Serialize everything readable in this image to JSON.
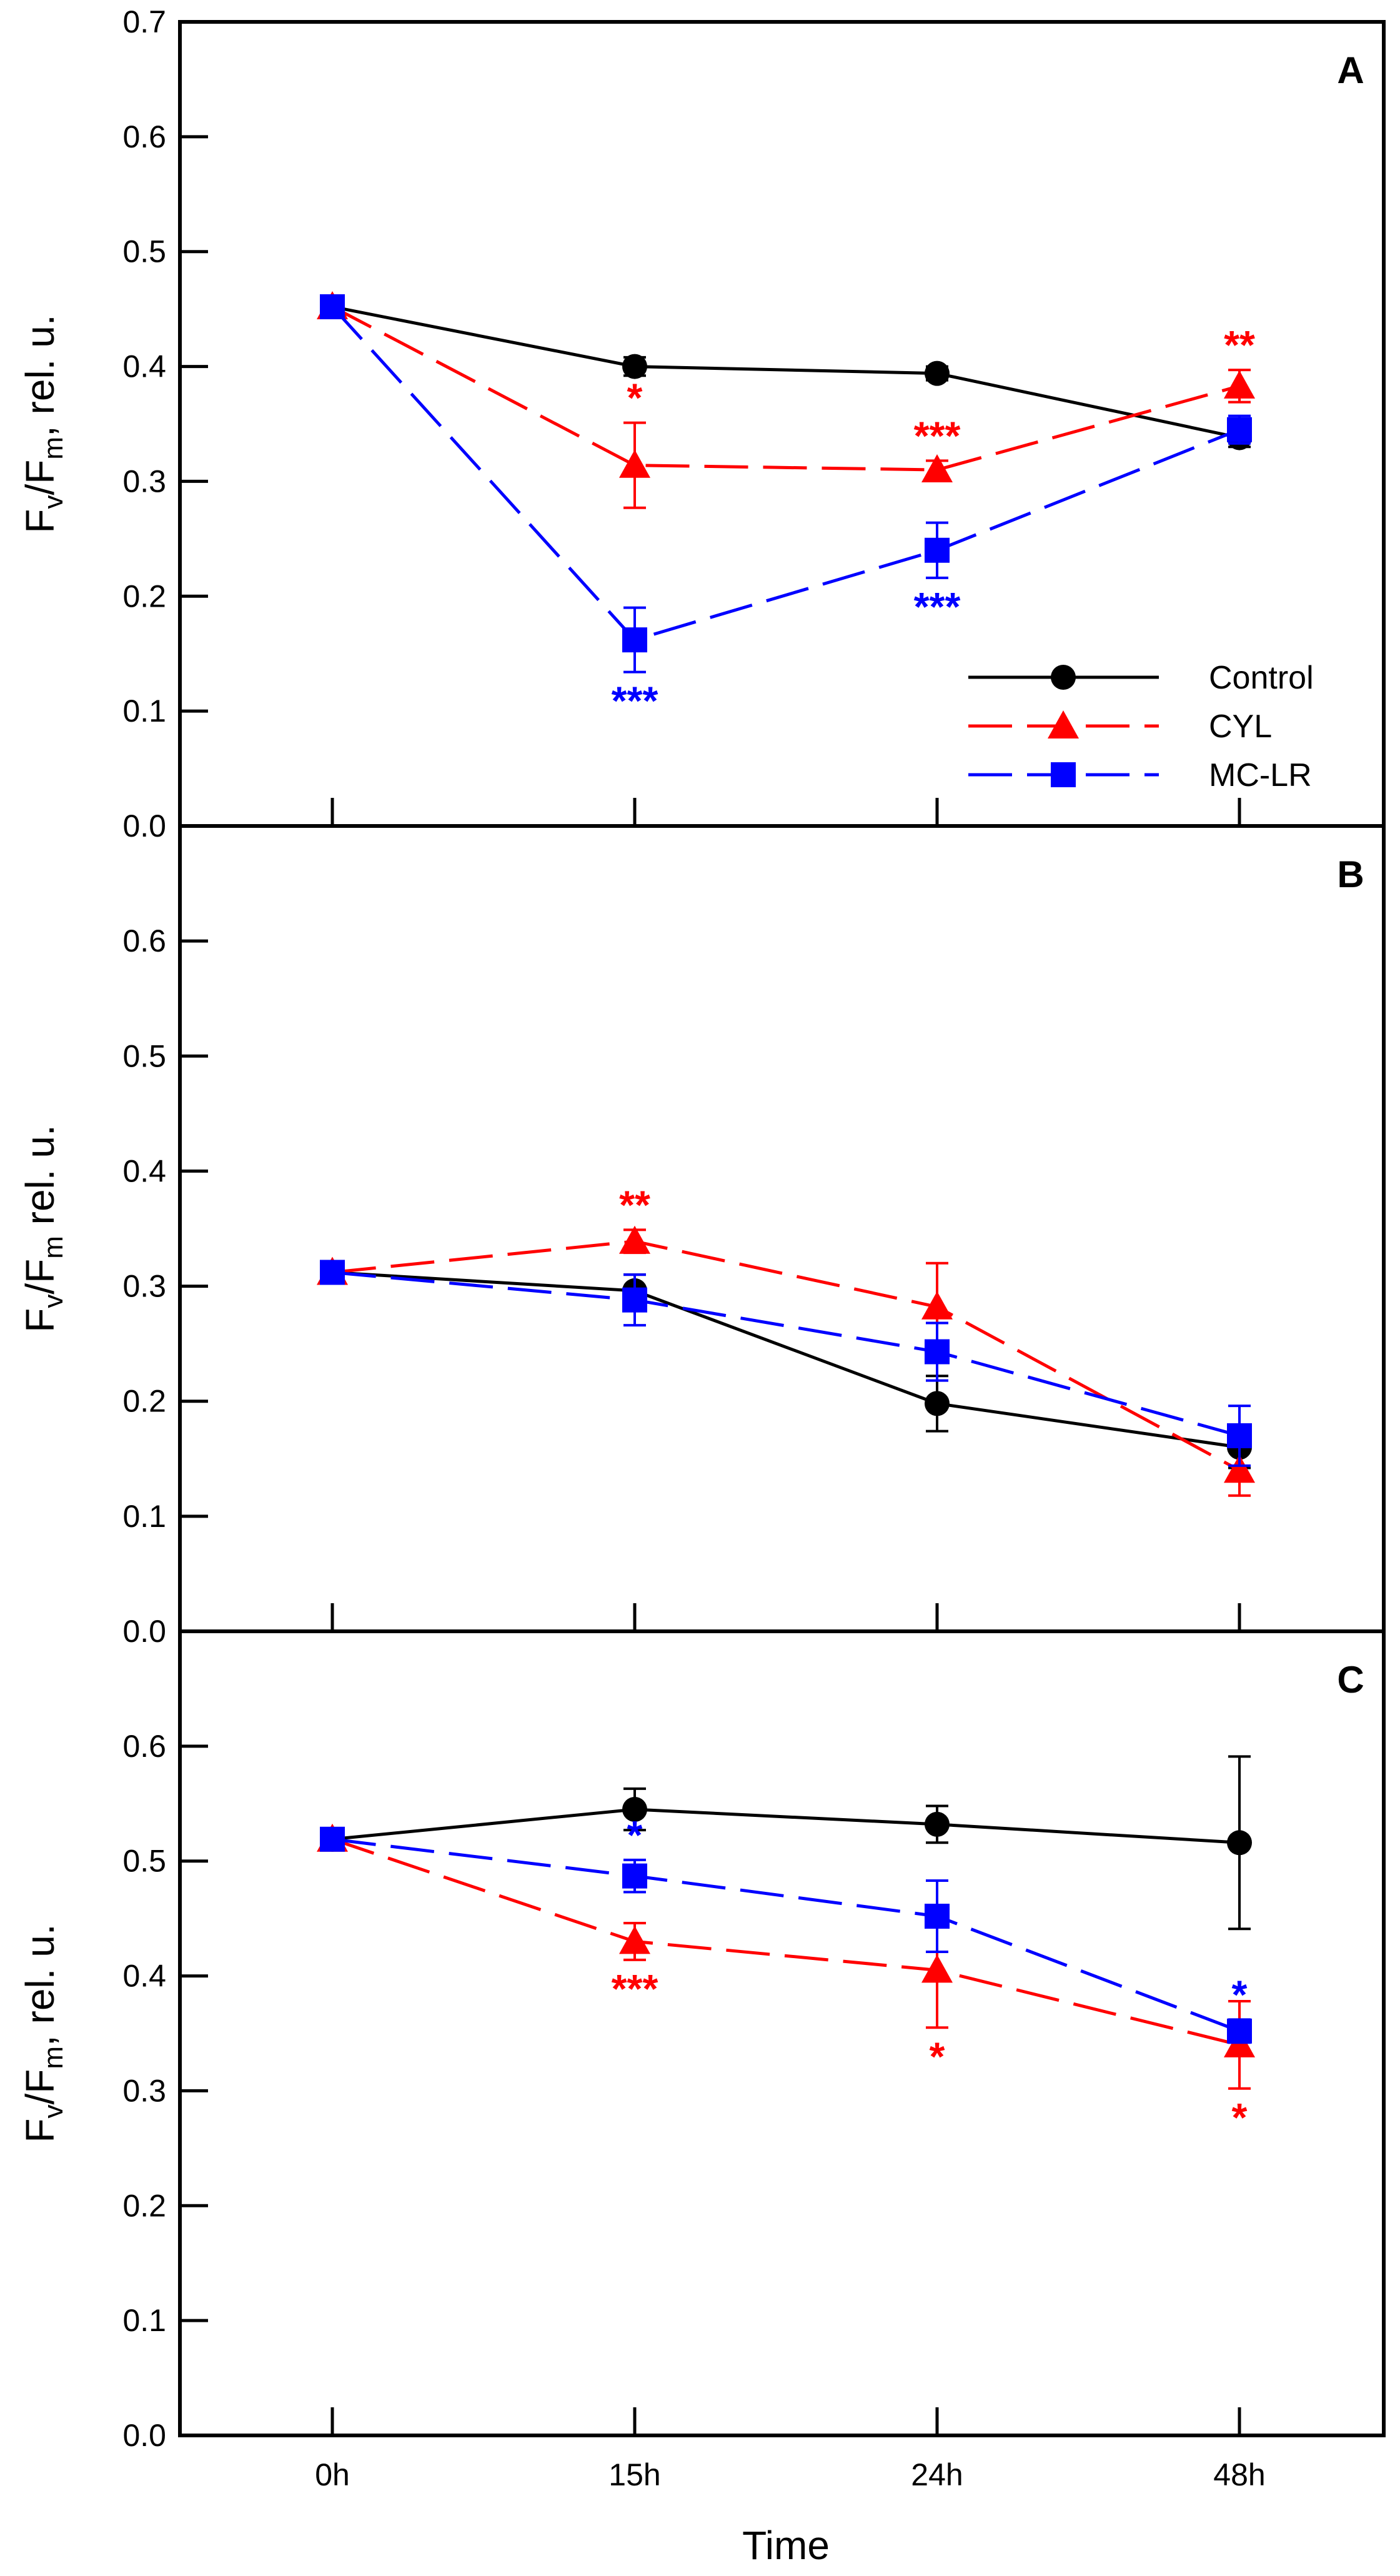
{
  "chart_data": {
    "type": "line",
    "x_categories": [
      "0h",
      "15h",
      "24h",
      "48h"
    ],
    "xlabel": "Time",
    "series_styles": [
      {
        "name": "Control",
        "color": "#000000",
        "marker": "circle",
        "dash": "solid"
      },
      {
        "name": "CYL",
        "color": "#ff0000",
        "marker": "triangle",
        "dash": "dashed"
      },
      {
        "name": "MC-LR",
        "color": "#0000ff",
        "marker": "square",
        "dash": "dashed"
      }
    ],
    "legend": {
      "location": "bottom-right of panel A",
      "entries": [
        "Control",
        "CYL",
        "MC-LR"
      ]
    },
    "panels": [
      {
        "label": "A",
        "ylabel_main": "F",
        "ylabel_sub1": "v",
        "ylabel_mid": "/F",
        "ylabel_sub2": "m",
        "ylabel_tail": ", rel. u.",
        "ylim": [
          0,
          0.7
        ],
        "yticks": [
          "0.0",
          "0.1",
          "0.2",
          "0.3",
          "0.4",
          "0.5",
          "0.6",
          "0.7"
        ],
        "series": [
          {
            "name": "Control",
            "values": [
              0.452,
              0.4,
              0.394,
              0.338
            ],
            "errors": [
              0.008,
              0.008,
              0.006,
              0.008
            ]
          },
          {
            "name": "CYL",
            "values": [
              0.452,
              0.314,
              0.31,
              0.383
            ],
            "errors": [
              0.008,
              0.037,
              0.008,
              0.014
            ]
          },
          {
            "name": "MC-LR",
            "values": [
              0.452,
              0.162,
              0.24,
              0.345
            ],
            "errors": [
              0.008,
              0.028,
              0.024,
              0.012
            ]
          }
        ],
        "annotations": [
          {
            "series": "CYL",
            "x": "15h",
            "text": "*",
            "pos": "above"
          },
          {
            "series": "CYL",
            "x": "24h",
            "text": "***",
            "pos": "above"
          },
          {
            "series": "CYL",
            "x": "48h",
            "text": "**",
            "pos": "above"
          },
          {
            "series": "MC-LR",
            "x": "15h",
            "text": "***",
            "pos": "below"
          },
          {
            "series": "MC-LR",
            "x": "24h",
            "text": "***",
            "pos": "below"
          }
        ]
      },
      {
        "label": "B",
        "ylabel_main": "F",
        "ylabel_sub1": "v",
        "ylabel_mid": "/F",
        "ylabel_sub2": "m",
        "ylabel_tail": " rel. u.",
        "ylim": [
          0,
          0.7
        ],
        "yticks": [
          "0.0",
          "0.1",
          "0.2",
          "0.3",
          "0.4",
          "0.5",
          "0.6"
        ],
        "series": [
          {
            "name": "Control",
            "values": [
              0.312,
              0.296,
              0.198,
              0.16
            ],
            "errors": [
              0.006,
              0.014,
              0.024,
              0.018
            ]
          },
          {
            "name": "CYL",
            "values": [
              0.312,
              0.339,
              0.282,
              0.14
            ],
            "errors": [
              0.006,
              0.01,
              0.038,
              0.022
            ]
          },
          {
            "name": "MC-LR",
            "values": [
              0.312,
              0.288,
              0.243,
              0.17
            ],
            "errors": [
              0.006,
              0.022,
              0.025,
              0.026
            ]
          }
        ],
        "annotations": [
          {
            "series": "CYL",
            "x": "15h",
            "text": "**",
            "pos": "above"
          }
        ]
      },
      {
        "label": "C",
        "ylabel_main": "F",
        "ylabel_sub1": "v",
        "ylabel_mid": "/F",
        "ylabel_sub2": "m",
        "ylabel_tail": ", rel. u.",
        "ylim": [
          0,
          0.7
        ],
        "yticks": [
          "0.0",
          "0.1",
          "0.2",
          "0.3",
          "0.4",
          "0.5",
          "0.6"
        ],
        "series": [
          {
            "name": "Control",
            "values": [
              0.519,
              0.545,
              0.532,
              0.516
            ],
            "errors": [
              0.006,
              0.018,
              0.016,
              0.075
            ]
          },
          {
            "name": "CYL",
            "values": [
              0.519,
              0.43,
              0.405,
              0.34
            ],
            "errors": [
              0.006,
              0.016,
              0.05,
              0.038
            ]
          },
          {
            "name": "MC-LR",
            "values": [
              0.519,
              0.487,
              0.452,
              0.352
            ],
            "errors": [
              0.006,
              0.014,
              0.031,
              0.01
            ]
          }
        ],
        "annotations": [
          {
            "series": "MC-LR",
            "x": "15h",
            "text": "*",
            "pos": "above"
          },
          {
            "series": "CYL",
            "x": "15h",
            "text": "***",
            "pos": "below"
          },
          {
            "series": "CYL",
            "x": "24h",
            "text": "*",
            "pos": "below"
          },
          {
            "series": "MC-LR",
            "x": "48h",
            "text": "*",
            "pos": "above"
          },
          {
            "series": "CYL",
            "x": "48h",
            "text": "*",
            "pos": "below"
          }
        ]
      }
    ]
  }
}
